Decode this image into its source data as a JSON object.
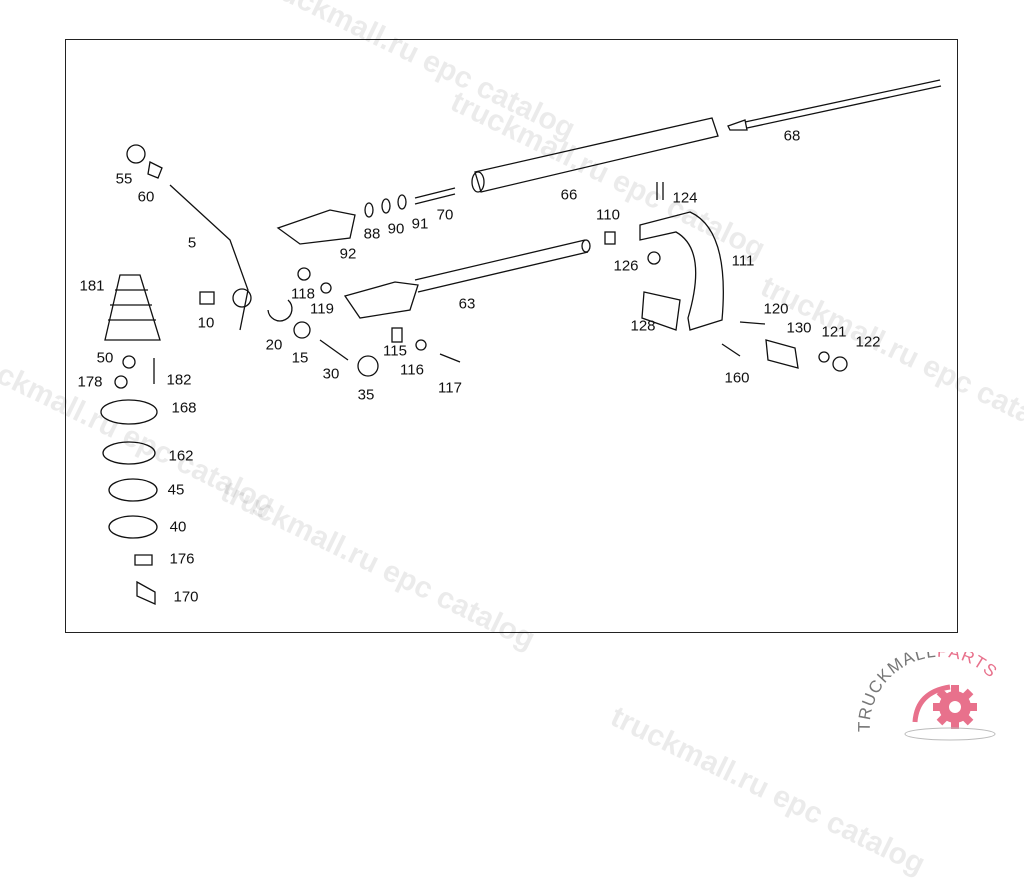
{
  "watermark": "truckmall.ru epc catalog",
  "labels": [
    "55",
    "60",
    "5",
    "181",
    "10",
    "20",
    "15",
    "30",
    "35",
    "50",
    "178",
    "182",
    "168",
    "162",
    "45",
    "40",
    "176",
    "170",
    "118",
    "119",
    "92",
    "88",
    "90",
    "91",
    "70",
    "63",
    "115",
    "116",
    "117",
    "66",
    "68",
    "124",
    "110",
    "126",
    "111",
    "128",
    "120",
    "130",
    "121",
    "122",
    "160"
  ],
  "logo": {
    "text_main": "TRUCKMALL",
    "text_accent": "PARTS",
    "accent_color": "#e8718c",
    "gray_color": "#777777"
  }
}
